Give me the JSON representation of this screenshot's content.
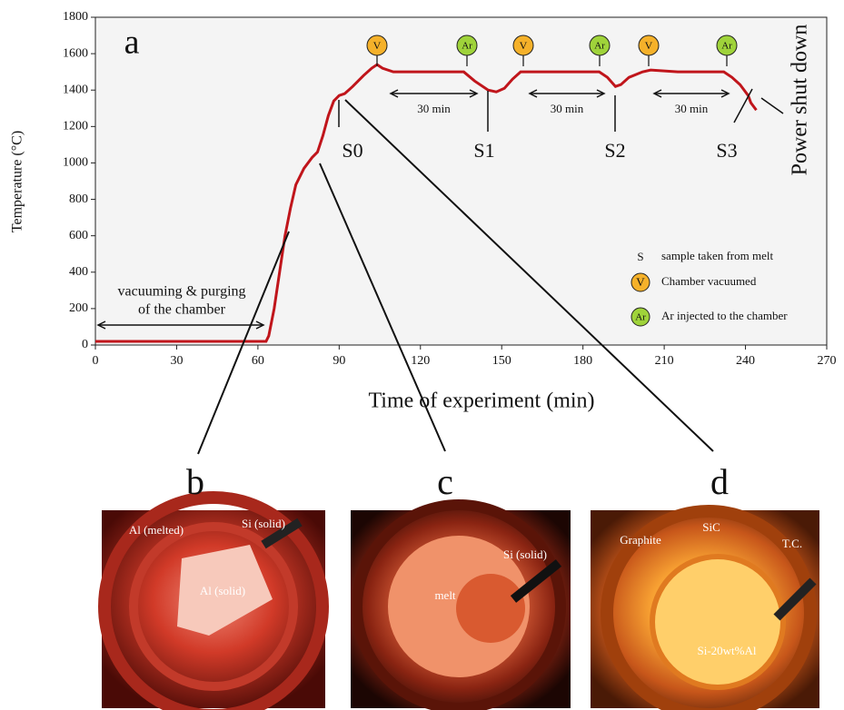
{
  "chart_data": {
    "type": "line",
    "panel_label": "a",
    "x_label": "Time of  experiment (min)",
    "y_label": "Temperature (°C)",
    "xlim": [
      0,
      270
    ],
    "xticks": [
      0,
      30,
      60,
      90,
      120,
      150,
      180,
      210,
      240,
      270
    ],
    "ylim": [
      0,
      1800
    ],
    "yticks": [
      0,
      200,
      400,
      600,
      800,
      1000,
      1200,
      1400,
      1600,
      1800
    ],
    "x": [
      0,
      60,
      63,
      64,
      66,
      68,
      70,
      72,
      74,
      77,
      80,
      82,
      84,
      86,
      88,
      90,
      92,
      95,
      99,
      102,
      104,
      106,
      110,
      120,
      136,
      140,
      145,
      148,
      151,
      154,
      157,
      170,
      186,
      189,
      192,
      194,
      197,
      202,
      205,
      215,
      232,
      235,
      238,
      241,
      242,
      244
    ],
    "series": [
      {
        "color": "#c0151b",
        "values": [
          20,
          20,
          20,
          50,
          200,
          400,
          600,
          750,
          880,
          970,
          1030,
          1060,
          1150,
          1260,
          1340,
          1370,
          1380,
          1420,
          1480,
          1520,
          1540,
          1520,
          1500,
          1500,
          1500,
          1450,
          1400,
          1390,
          1410,
          1460,
          1500,
          1500,
          1500,
          1470,
          1420,
          1430,
          1470,
          1500,
          1510,
          1500,
          1500,
          1470,
          1430,
          1370,
          1330,
          1290
        ]
      }
    ],
    "samples": [
      "S0",
      "S1",
      "S2",
      "S3"
    ],
    "durations": [
      "30 min",
      "30 min",
      "30 min"
    ],
    "events": [
      "V",
      "Ar",
      "V",
      "Ar",
      "V",
      "Ar"
    ],
    "shutdown": "Power shut down",
    "purge": [
      "vacuuming & purging",
      "of the chamber"
    ],
    "legend": [
      {
        "symbol": "S",
        "text": "sample taken from melt"
      },
      {
        "symbol": "V",
        "text": "Chamber vacuumed"
      },
      {
        "symbol": "Ar",
        "text": "Ar injected to the chamber"
      }
    ]
  },
  "panels": [
    {
      "label": "b",
      "notes": [
        "Al (melted)",
        "Si (solid)",
        "Al (solid)"
      ]
    },
    {
      "label": "c",
      "notes": [
        "melt",
        "Si (solid)"
      ]
    },
    {
      "label": "d",
      "notes": [
        "Graphite",
        "SiC",
        "T.C.",
        "Si-20wt%Al"
      ]
    }
  ]
}
